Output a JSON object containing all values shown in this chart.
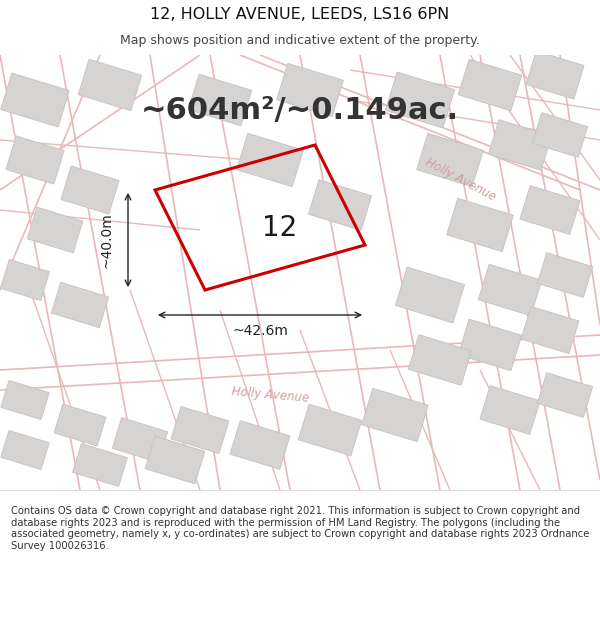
{
  "title_line1": "12, HOLLY AVENUE, LEEDS, LS16 6PN",
  "title_line2": "Map shows position and indicative extent of the property.",
  "area_label": "~604m²/~0.149ac.",
  "property_number": "12",
  "dim_width": "~42.6m",
  "dim_height": "~40.0m",
  "road_label_upper": "Holly Avenue",
  "road_label_lower": "Holly Avenue",
  "footer_text": "Contains OS data © Crown copyright and database right 2021. This information is subject to Crown copyright and database rights 2023 and is reproduced with the permission of HM Land Registry. The polygons (including the associated geometry, namely x, y co-ordinates) are subject to Crown copyright and database rights 2023 Ordnance Survey 100026316.",
  "map_bg": "#f7f6f4",
  "road_color": "#e8b8b8",
  "plot_outline_color": "#cc0000",
  "building_fill": "#d6d4d2",
  "building_edge": "#c8c4c2",
  "footer_bg": "#ffffff",
  "white": "#ffffff",
  "dim_color": "#222222",
  "label_color": "#555555",
  "road_text_color": "#d0a0a0",
  "title_color": "#111111",
  "subtitle_color": "#444444",
  "area_color": "#333333"
}
